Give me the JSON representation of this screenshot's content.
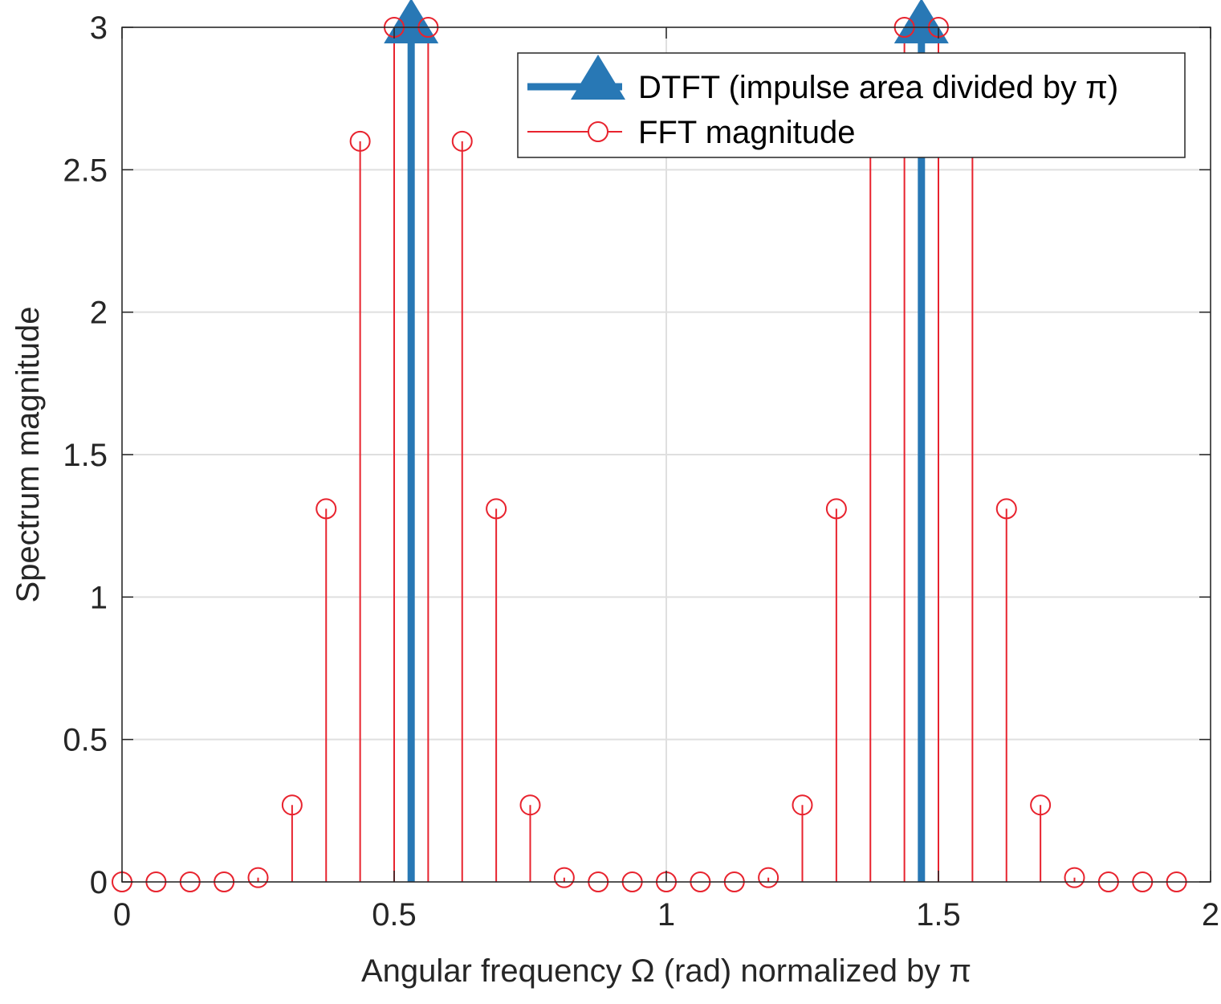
{
  "chart_data": {
    "type": "stem",
    "xlabel": "Angular frequency Ω (rad) normalized by π",
    "ylabel": "Spectrum magnitude",
    "xlim": [
      0,
      2
    ],
    "ylim": [
      0,
      3
    ],
    "xticks": [
      "0",
      "0.5",
      "1",
      "1.5",
      "2"
    ],
    "yticks": [
      "0",
      "0.5",
      "1",
      "1.5",
      "2",
      "2.5",
      "3"
    ],
    "grid": true,
    "legend_position": "top-right",
    "series": [
      {
        "name": "DTFT (impulse area divided by π)",
        "color": "#2878b5",
        "marker": "triangle-up",
        "x": [
          0.53125,
          1.46875
        ],
        "values": [
          3,
          3
        ]
      },
      {
        "name": "FFT magnitude",
        "color": "#e8232e",
        "marker": "circle",
        "x": [
          0,
          0.0625,
          0.125,
          0.1875,
          0.25,
          0.3125,
          0.375,
          0.4375,
          0.5,
          0.5625,
          0.625,
          0.6875,
          0.75,
          0.8125,
          0.875,
          0.9375,
          1.0,
          1.0625,
          1.125,
          1.1875,
          1.25,
          1.3125,
          1.375,
          1.4375,
          1.5,
          1.5625,
          1.625,
          1.6875,
          1.75,
          1.8125,
          1.875,
          1.9375
        ],
        "values": [
          0,
          0,
          0,
          0,
          0.015,
          0.27,
          1.31,
          2.6,
          3.0,
          3.0,
          2.6,
          1.31,
          0.27,
          0.015,
          0,
          0,
          0,
          0,
          0,
          0.015,
          0.27,
          1.31,
          2.6,
          3.0,
          3.0,
          2.6,
          1.31,
          0.27,
          0.015,
          0,
          0,
          0
        ]
      }
    ]
  }
}
